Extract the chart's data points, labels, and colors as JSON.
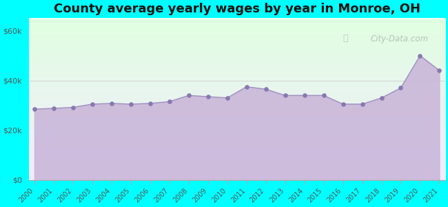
{
  "title": "County average yearly wages by year in Monroe, OH",
  "years": [
    2000,
    2001,
    2002,
    2003,
    2004,
    2005,
    2006,
    2007,
    2008,
    2009,
    2010,
    2011,
    2012,
    2013,
    2014,
    2015,
    2016,
    2017,
    2018,
    2019,
    2020,
    2021
  ],
  "wages": [
    28500,
    28800,
    29200,
    30500,
    30800,
    30500,
    30800,
    31500,
    34000,
    33500,
    33000,
    37500,
    36500,
    34000,
    34000,
    34000,
    30500,
    30500,
    33000,
    37000,
    50000,
    44000
  ],
  "fill_color": "#c8b4d8",
  "line_color": "#a090c0",
  "marker_color": "#8878b0",
  "bg_color_outer": "#00ffff",
  "title_fontsize": 13,
  "ylabel_ticks": [
    "$0",
    "$20k",
    "$40k",
    "$60k"
  ],
  "ytick_values": [
    0,
    20000,
    40000,
    60000
  ],
  "ylim": [
    0,
    65000
  ],
  "watermark": "City-Data.com"
}
